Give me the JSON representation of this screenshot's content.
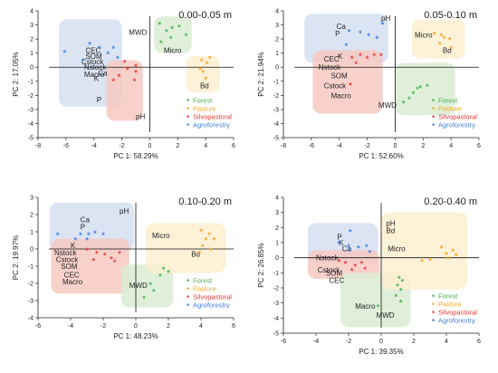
{
  "colors": {
    "forest": "#4caf50",
    "pasture": "#f5a623",
    "silvopastoral": "#e53935",
    "agroforestry": "#3f7fe0",
    "forest_fill": "#d9ecd3",
    "pasture_fill": "#fdefd0",
    "silvopastoral_fill": "#f7c9c2",
    "agroforestry_fill": "#d5dff1"
  },
  "chart_data": [
    {
      "type": "scatter",
      "title": "0.00-0.05 m",
      "xlabel": "PC 1: 58.29%",
      "ylabel": "PC 2: 17.05%",
      "xlim": [
        -8,
        6
      ],
      "ylim": [
        -5,
        4
      ],
      "xticks": [
        -8,
        -6,
        -4,
        -2,
        0,
        2,
        4,
        6
      ],
      "yticks": [
        -5,
        -4,
        -3,
        -2,
        -1,
        0,
        1,
        2,
        3,
        4
      ],
      "legend": {
        "position": "bottom-right",
        "entries": [
          "Forest",
          "Pasture",
          "Silvopastoral",
          "Agroforestry"
        ]
      },
      "series": [
        {
          "name": "Forest",
          "points": [
            [
              0.7,
              3.0
            ],
            [
              1.2,
              2.5
            ],
            [
              1.6,
              2.7
            ],
            [
              2.1,
              2.8
            ],
            [
              1.5,
              2.0
            ],
            [
              0.8,
              1.7
            ],
            [
              2.6,
              2.2
            ]
          ]
        },
        {
          "name": "Pasture",
          "points": [
            [
              3.7,
              0.4
            ],
            [
              4.1,
              0.2
            ],
            [
              3.8,
              -0.4
            ],
            [
              4.0,
              -0.9
            ],
            [
              3.6,
              -0.2
            ],
            [
              4.3,
              0.6
            ]
          ]
        },
        {
          "name": "Silvopastoral",
          "points": [
            [
              -1.6,
              -0.2
            ],
            [
              -2.2,
              -0.7
            ],
            [
              -1.0,
              -0.4
            ],
            [
              -2.6,
              -1.0
            ],
            [
              -1.0,
              0.0
            ],
            [
              -1.8,
              0.3
            ],
            [
              -1.1,
              -1.0
            ]
          ]
        },
        {
          "name": "Agroforestry",
          "points": [
            [
              -6.1,
              1.0
            ],
            [
              -4.3,
              1.6
            ],
            [
              -3.6,
              1.3
            ],
            [
              -3.0,
              0.9
            ],
            [
              -2.6,
              1.3
            ],
            [
              -2.3,
              0.6
            ],
            [
              -4.8,
              0.4
            ]
          ]
        }
      ],
      "vectors": [
        {
          "label": "MWD",
          "x": -1.5,
          "y": 2.5
        },
        {
          "label": "Micro",
          "x": 1.0,
          "y": 1.2
        },
        {
          "label": "CEC",
          "x": -4.6,
          "y": 1.2
        },
        {
          "label": "SOM",
          "x": -4.6,
          "y": 0.8
        },
        {
          "label": "Cstock",
          "x": -4.9,
          "y": 0.4
        },
        {
          "label": "Nstock",
          "x": -4.7,
          "y": 0.0
        },
        {
          "label": "Macro",
          "x": -4.7,
          "y": -0.5
        },
        {
          "label": "Ca",
          "x": -3.7,
          "y": -0.4
        },
        {
          "label": "K",
          "x": -4.0,
          "y": -0.8
        },
        {
          "label": "P",
          "x": -3.8,
          "y": -2.3
        },
        {
          "label": "pH",
          "x": -1.0,
          "y": -3.5
        },
        {
          "label": "Bd",
          "x": 3.6,
          "y": -1.3
        }
      ],
      "groups": [
        {
          "name": "Agroforestry",
          "x0": -6.5,
          "x1": -2.0,
          "y0": -2.8,
          "y1": 3.4
        },
        {
          "name": "Silvopastoral",
          "x0": -3.1,
          "x1": -0.5,
          "y0": -3.8,
          "y1": 0.5
        },
        {
          "name": "Forest",
          "x0": 0.3,
          "x1": 3.0,
          "y0": 1.0,
          "y1": 3.6
        },
        {
          "name": "Pasture",
          "x0": 2.6,
          "x1": 5.0,
          "y0": -1.8,
          "y1": 0.8
        }
      ]
    },
    {
      "type": "scatter",
      "title": "0.05-0.10 m",
      "xlabel": "PC 1: 52.60%",
      "ylabel": "PC 2: 21.94%",
      "xlim": [
        -8,
        6
      ],
      "ylim": [
        -5,
        4
      ],
      "xticks": [
        -8,
        -6,
        -4,
        -2,
        0,
        2,
        4,
        6
      ],
      "yticks": [
        -5,
        -4,
        -3,
        -2,
        -1,
        0,
        1,
        2,
        3,
        4
      ],
      "legend": {
        "position": "bottom-right",
        "entries": [
          "Forest",
          "Pasture",
          "Silvopastoral",
          "Agroforestry"
        ]
      },
      "series": [
        {
          "name": "Forest",
          "points": [
            [
              1.0,
              -2.3
            ],
            [
              1.3,
              -1.9
            ],
            [
              1.6,
              -1.6
            ],
            [
              1.8,
              -1.5
            ],
            [
              2.3,
              -1.4
            ],
            [
              0.6,
              -2.6
            ]
          ]
        },
        {
          "name": "Pasture",
          "points": [
            [
              2.8,
              2.3
            ],
            [
              3.3,
              2.2
            ],
            [
              3.5,
              2.0
            ],
            [
              3.9,
              1.9
            ],
            [
              3.2,
              1.6
            ],
            [
              4.0,
              1.3
            ]
          ]
        },
        {
          "name": "Silvopastoral",
          "points": [
            [
              -3.1,
              0.6
            ],
            [
              -2.5,
              0.8
            ],
            [
              -2.0,
              0.6
            ],
            [
              -1.5,
              0.8
            ],
            [
              -1.0,
              0.8
            ],
            [
              -2.8,
              0.2
            ],
            [
              -3.2,
              -1.3
            ]
          ]
        },
        {
          "name": "Agroforestry",
          "points": [
            [
              -3.3,
              2.5
            ],
            [
              -2.5,
              2.4
            ],
            [
              -1.9,
              2.2
            ],
            [
              -1.3,
              2.0
            ],
            [
              -0.9,
              3.0
            ],
            [
              -3.5,
              1.5
            ]
          ]
        }
      ],
      "vectors": [
        {
          "label": "pH",
          "x": -1.0,
          "y": 3.5
        },
        {
          "label": "Ca",
          "x": -4.2,
          "y": 2.9
        },
        {
          "label": "P",
          "x": -4.3,
          "y": 2.4
        },
        {
          "label": "Micro",
          "x": 1.4,
          "y": 2.3
        },
        {
          "label": "Bd",
          "x": 3.4,
          "y": 1.2
        },
        {
          "label": "K",
          "x": -4.1,
          "y": 0.8
        },
        {
          "label": "CEC",
          "x": -5.1,
          "y": 0.6
        },
        {
          "label": "Nstock",
          "x": -5.5,
          "y": 0.0
        },
        {
          "label": "SOM",
          "x": -4.6,
          "y": -0.6
        },
        {
          "label": "Cstock",
          "x": -5.1,
          "y": -1.3
        },
        {
          "label": "Macro",
          "x": -4.6,
          "y": -2.0
        },
        {
          "label": "MWD",
          "x": -1.2,
          "y": -2.7
        }
      ],
      "groups": [
        {
          "name": "Agroforestry",
          "x0": -6.5,
          "x1": -0.5,
          "y0": 0.3,
          "y1": 3.8
        },
        {
          "name": "Silvopastoral",
          "x0": -5.9,
          "x1": -0.9,
          "y0": -3.3,
          "y1": 1.2
        },
        {
          "name": "Forest",
          "x0": 0.0,
          "x1": 4.3,
          "y0": -3.4,
          "y1": 0.3
        },
        {
          "name": "Pasture",
          "x0": 1.2,
          "x1": 5.0,
          "y0": 0.6,
          "y1": 3.4
        }
      ]
    },
    {
      "type": "scatter",
      "title": "0.10-0.20 m",
      "xlabel": "PC 1: 48.23%",
      "ylabel": "PC 2: 19.97%",
      "xlim": [
        -6,
        6
      ],
      "ylim": [
        -4,
        3
      ],
      "xticks": [
        -6,
        -4,
        -2,
        0,
        2,
        4,
        6
      ],
      "yticks": [
        -4,
        -3,
        -2,
        -1,
        0,
        1,
        2,
        3
      ],
      "legend": {
        "position": "bottom-right",
        "entries": [
          "Forest",
          "Pasture",
          "Silvopastoral",
          "Agroforestry"
        ]
      },
      "series": [
        {
          "name": "Forest",
          "points": [
            [
              1.7,
              -1.2
            ],
            [
              2.0,
              -1.4
            ],
            [
              1.5,
              -1.6
            ],
            [
              0.9,
              -2.1
            ],
            [
              1.1,
              -2.5
            ],
            [
              0.5,
              -2.9
            ]
          ]
        },
        {
          "name": "Pasture",
          "points": [
            [
              4.0,
              1.0
            ],
            [
              4.5,
              0.8
            ],
            [
              4.3,
              0.5
            ],
            [
              4.8,
              0.5
            ],
            [
              4.1,
              0.1
            ],
            [
              4.6,
              -0.1
            ],
            [
              3.9,
              -0.3
            ]
          ]
        },
        {
          "name": "Silvopastoral",
          "points": [
            [
              -3.0,
              -0.1
            ],
            [
              -2.4,
              -0.3
            ],
            [
              -1.9,
              -0.4
            ],
            [
              -1.5,
              -0.6
            ],
            [
              -1.0,
              -0.3
            ],
            [
              -1.3,
              -0.8
            ],
            [
              -2.6,
              -0.7
            ]
          ]
        },
        {
          "name": "Agroforestry",
          "points": [
            [
              -4.8,
              0.8
            ],
            [
              -3.7,
              0.5
            ],
            [
              -3.4,
              0.8
            ],
            [
              -2.9,
              0.8
            ],
            [
              -2.5,
              0.9
            ],
            [
              -2.0,
              0.8
            ],
            [
              -3.0,
              0.5
            ]
          ]
        }
      ],
      "vectors": [
        {
          "label": "pH",
          "x": -1.0,
          "y": 2.2
        },
        {
          "label": "Ca",
          "x": -3.4,
          "y": 1.7
        },
        {
          "label": "P",
          "x": -3.4,
          "y": 1.3
        },
        {
          "label": "K",
          "x": -4.0,
          "y": 0.2
        },
        {
          "label": "Micro",
          "x": 1.0,
          "y": 0.8
        },
        {
          "label": "Bd",
          "x": 3.4,
          "y": -0.3
        },
        {
          "label": "Nstock",
          "x": -5.0,
          "y": -0.2
        },
        {
          "label": "Cstock",
          "x": -4.9,
          "y": -0.6
        },
        {
          "label": "SOM",
          "x": -4.6,
          "y": -1.0
        },
        {
          "label": "CEC",
          "x": -4.4,
          "y": -1.5
        },
        {
          "label": "Macro",
          "x": -4.5,
          "y": -1.9
        },
        {
          "label": "MWD",
          "x": -0.4,
          "y": -2.1
        }
      ],
      "groups": [
        {
          "name": "Agroforestry",
          "x0": -5.3,
          "x1": -0.1,
          "y0": -0.1,
          "y1": 2.7
        },
        {
          "name": "Silvopastoral",
          "x0": -5.2,
          "x1": -0.4,
          "y0": -2.6,
          "y1": 0.6
        },
        {
          "name": "Forest",
          "x0": -0.9,
          "x1": 2.3,
          "y0": -3.4,
          "y1": -0.9
        },
        {
          "name": "Pasture",
          "x0": 0.6,
          "x1": 5.5,
          "y0": -1.4,
          "y1": 1.5
        }
      ]
    },
    {
      "type": "scatter",
      "title": "0.20-0.40 m",
      "xlabel": "PC 1: 39.35%",
      "ylabel": "PC 2: 26.85%",
      "xlim": [
        -6,
        6
      ],
      "ylim": [
        -5,
        4
      ],
      "xticks": [
        -6,
        -4,
        -2,
        0,
        2,
        4,
        6
      ],
      "yticks": [
        -5,
        -4,
        -3,
        -2,
        -1,
        0,
        1,
        2,
        3,
        4
      ],
      "legend": {
        "position": "bottom-right",
        "entries": [
          "Forest",
          "Pasture",
          "Silvopastoral",
          "Agroforestry"
        ]
      },
      "series": [
        {
          "name": "Forest",
          "points": [
            [
              1.1,
              -1.4
            ],
            [
              1.3,
              -1.6
            ],
            [
              1.0,
              -1.9
            ],
            [
              1.2,
              -2.2
            ],
            [
              0.9,
              -2.6
            ],
            [
              1.2,
              -3.0
            ],
            [
              -0.2,
              -3.3
            ]
          ]
        },
        {
          "name": "Pasture",
          "points": [
            [
              3.7,
              0.6
            ],
            [
              4.0,
              0.2
            ],
            [
              4.4,
              0.4
            ],
            [
              4.6,
              0.1
            ],
            [
              4.1,
              -0.1
            ],
            [
              3.0,
              -0.2
            ],
            [
              2.5,
              -0.3
            ]
          ]
        },
        {
          "name": "Silvopastoral",
          "points": [
            [
              -2.6,
              -0.3
            ],
            [
              -2.2,
              -0.4
            ],
            [
              -1.6,
              -0.6
            ],
            [
              -1.2,
              -0.4
            ],
            [
              -1.8,
              -0.9
            ],
            [
              -1.0,
              -0.8
            ]
          ]
        },
        {
          "name": "Agroforestry",
          "points": [
            [
              -2.6,
              0.9
            ],
            [
              -2.0,
              0.7
            ],
            [
              -1.4,
              0.6
            ],
            [
              -0.9,
              0.7
            ],
            [
              -2.0,
              0.4
            ],
            [
              -0.7,
              0.3
            ],
            [
              -1.9,
              1.7
            ]
          ]
        }
      ],
      "vectors": [
        {
          "label": "pH",
          "x": 0.3,
          "y": 2.3
        },
        {
          "label": "Bd",
          "x": 0.3,
          "y": 1.8
        },
        {
          "label": "P",
          "x": -2.7,
          "y": 1.4
        },
        {
          "label": "K",
          "x": -2.6,
          "y": 1.0
        },
        {
          "label": "Ca",
          "x": -2.4,
          "y": 0.6
        },
        {
          "label": "Micro",
          "x": 0.4,
          "y": 0.6
        },
        {
          "label": "Nstock",
          "x": -4.0,
          "y": 0.0
        },
        {
          "label": "Cstock",
          "x": -3.9,
          "y": -0.8
        },
        {
          "label": "SOM",
          "x": -3.4,
          "y": -1.0
        },
        {
          "label": "CEC",
          "x": -3.2,
          "y": -1.5
        },
        {
          "label": "Macro",
          "x": -1.6,
          "y": -3.2
        },
        {
          "label": "MWD",
          "x": -0.3,
          "y": -3.8
        }
      ],
      "groups": [
        {
          "name": "Agroforestry",
          "x0": -4.5,
          "x1": -0.2,
          "y0": -0.4,
          "y1": 2.3
        },
        {
          "name": "Silvopastoral",
          "x0": -4.5,
          "x1": -0.1,
          "y0": -1.4,
          "y1": 0.5
        },
        {
          "name": "Forest",
          "x0": -2.5,
          "x1": 1.8,
          "y0": -4.6,
          "y1": -1.0
        },
        {
          "name": "Pasture",
          "x0": 0.0,
          "x1": 5.3,
          "y0": -2.1,
          "y1": 3.0
        }
      ]
    }
  ]
}
